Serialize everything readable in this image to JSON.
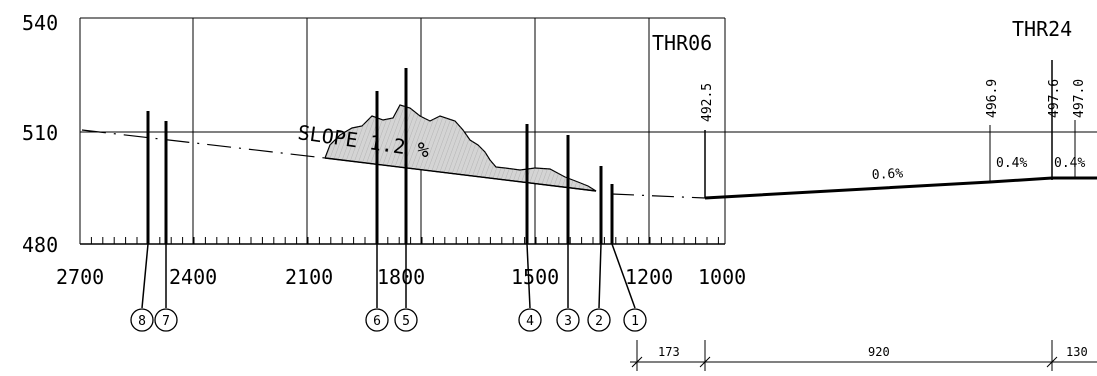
{
  "y_axis": {
    "ticks": [
      "540",
      "510",
      "480"
    ]
  },
  "x_axis": {
    "ticks": [
      "2700",
      "2400",
      "2100",
      "1800",
      "1500",
      "1200",
      "1000"
    ]
  },
  "thresholds": {
    "thr06": "THR06",
    "thr24": "THR24"
  },
  "slope_label": "SLOPE 1.2 %",
  "elevations": [
    "492.5",
    "496.9",
    "497.6",
    "497.0"
  ],
  "gradients": [
    "0.6%",
    "0.4%",
    "0.4%"
  ],
  "markers": [
    "8",
    "7",
    "6",
    "5",
    "4",
    "3",
    "2",
    "1"
  ],
  "distances": [
    "173",
    "920",
    "130"
  ]
}
